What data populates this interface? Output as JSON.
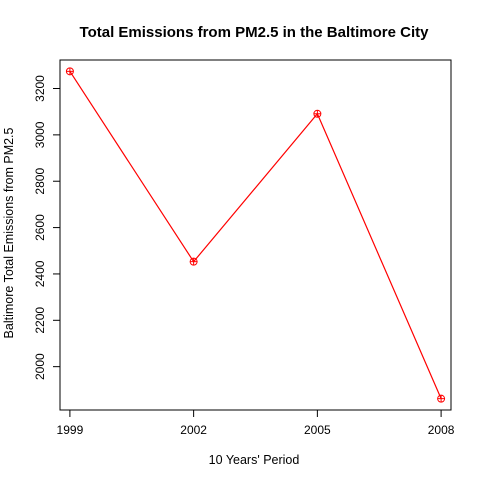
{
  "chart_data": {
    "type": "line",
    "title": "Total Emissions from PM2.5 in the Baltimore City",
    "xlabel": "10 Years' Period",
    "ylabel": "Baltimore Total Emissions from PM2.5",
    "x": [
      1999,
      2002,
      2005,
      2008
    ],
    "x_tick_labels": [
      "1999",
      "2002",
      "2005",
      "2008"
    ],
    "y_ticks": [
      2000,
      2200,
      2400,
      2600,
      2800,
      3000,
      3200
    ],
    "y_tick_labels": [
      "2000",
      "2200",
      "2400",
      "2600",
      "2800",
      "3000",
      "3200"
    ],
    "series": [
      {
        "values": [
          3274,
          2453,
          3091,
          1862
        ],
        "color": "#ff0000",
        "marker": "circle-plus"
      }
    ],
    "xlim": [
      1998.76,
      2008.24
    ],
    "ylim": [
      1813,
      3323
    ],
    "grid": false,
    "legend": "none"
  }
}
